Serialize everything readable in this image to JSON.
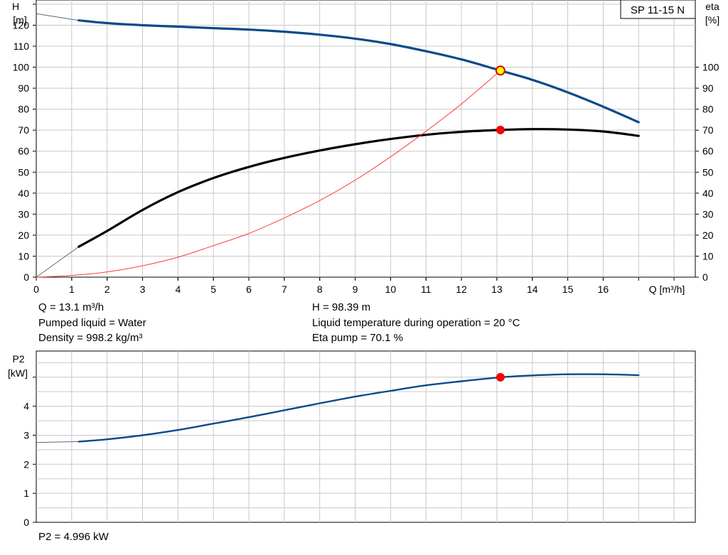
{
  "model_label": "SP 11-15 N",
  "top_chart": {
    "left_axis_title": [
      "H",
      "[m]"
    ],
    "right_axis_title": [
      "eta",
      "[%]"
    ],
    "x_axis_title": "Q [m³/h]"
  },
  "bottom_chart": {
    "axis_title": [
      "P2",
      "[kW]"
    ]
  },
  "info": {
    "q": "Q = 13.1 m³/h",
    "liquid": "Pumped liquid = Water",
    "density": "Density = 998.2 kg/m³",
    "h": "H = 98.39 m",
    "temperature": "Liquid temperature during operation = 20 °C",
    "eta": "Eta pump = 70.1 %",
    "p2": "P2 = 4.996 kW"
  },
  "chart_data": [
    {
      "type": "line",
      "x_ticks": [
        "0",
        "1",
        "2",
        "3",
        "4",
        "5",
        "6",
        "7",
        "8",
        "9",
        "10",
        "11",
        "12",
        "13",
        "14",
        "15",
        "16"
      ],
      "y_ticks": [
        "0",
        "10",
        "20",
        "30",
        "40",
        "50",
        "60",
        "70",
        "80",
        "90",
        "100",
        "110",
        "120"
      ],
      "y2_ticks": [
        "0",
        "10",
        "20",
        "30",
        "40",
        "50",
        "60",
        "70",
        "80",
        "90",
        "100"
      ],
      "xlim": [
        0,
        18.6
      ],
      "ylim": [
        0,
        132
      ],
      "y2lim": [
        0,
        132
      ],
      "grid": true,
      "series": [
        {
          "name": "H",
          "color": "#0b4a8b",
          "axis": "left",
          "x": [
            0,
            1.2,
            2,
            3,
            4,
            5,
            6,
            7,
            8,
            9,
            10,
            11,
            12,
            13.1,
            14,
            15,
            16,
            17
          ],
          "y": [
            125.5,
            122.3,
            121.0,
            120.0,
            119.3,
            118.6,
            117.9,
            116.9,
            115.5,
            113.6,
            111.0,
            107.6,
            103.7,
            98.39,
            94.0,
            88.0,
            81.2,
            73.8
          ]
        },
        {
          "name": "eta",
          "color": "#000000",
          "axis": "right",
          "x": [
            0,
            1.2,
            2,
            3,
            4,
            5,
            6,
            7,
            8,
            9,
            10,
            11,
            12,
            13.1,
            14,
            15,
            16,
            17
          ],
          "y": [
            0,
            14.5,
            22.0,
            32.0,
            40.5,
            47.2,
            52.5,
            56.8,
            60.3,
            63.3,
            65.8,
            67.8,
            69.2,
            70.1,
            70.5,
            70.3,
            69.4,
            67.3
          ]
        },
        {
          "name": "system curve",
          "color": "#ff3b3b",
          "axis": "left",
          "x": [
            0,
            1,
            2,
            3,
            4,
            5,
            6,
            7,
            8,
            9,
            10,
            11,
            12,
            13.1
          ],
          "y": [
            0,
            0.8,
            2.5,
            5.4,
            9.5,
            15.0,
            20.8,
            28.2,
            36.5,
            46.2,
            57.3,
            69.5,
            82.5,
            98.39
          ]
        }
      ],
      "operating_points": [
        {
          "x": 13.1,
          "y": 98.39,
          "axis": "left",
          "fill": "#ffff00",
          "stroke": "#e00000"
        },
        {
          "x": 13.1,
          "y": 70.1,
          "axis": "right",
          "fill": "#ff0000",
          "stroke": "#e00000"
        }
      ]
    },
    {
      "type": "line",
      "y_ticks": [
        "0",
        "1",
        "2",
        "3",
        "4"
      ],
      "xlim": [
        0,
        18.6
      ],
      "ylim": [
        0,
        5.9
      ],
      "grid": true,
      "series": [
        {
          "name": "P2",
          "color": "#0b4a8b",
          "x": [
            0,
            1.2,
            2,
            3,
            4,
            5,
            6,
            7,
            8,
            9,
            10,
            11,
            12,
            13.1,
            14,
            15,
            16,
            17
          ],
          "y": [
            2.75,
            2.78,
            2.86,
            3.0,
            3.18,
            3.4,
            3.62,
            3.86,
            4.1,
            4.33,
            4.53,
            4.72,
            4.86,
            4.996,
            5.06,
            5.1,
            5.1,
            5.07
          ]
        }
      ],
      "operating_points": [
        {
          "x": 13.1,
          "y": 4.996,
          "fill": "#ff0000",
          "stroke": "#e00000"
        }
      ]
    }
  ]
}
